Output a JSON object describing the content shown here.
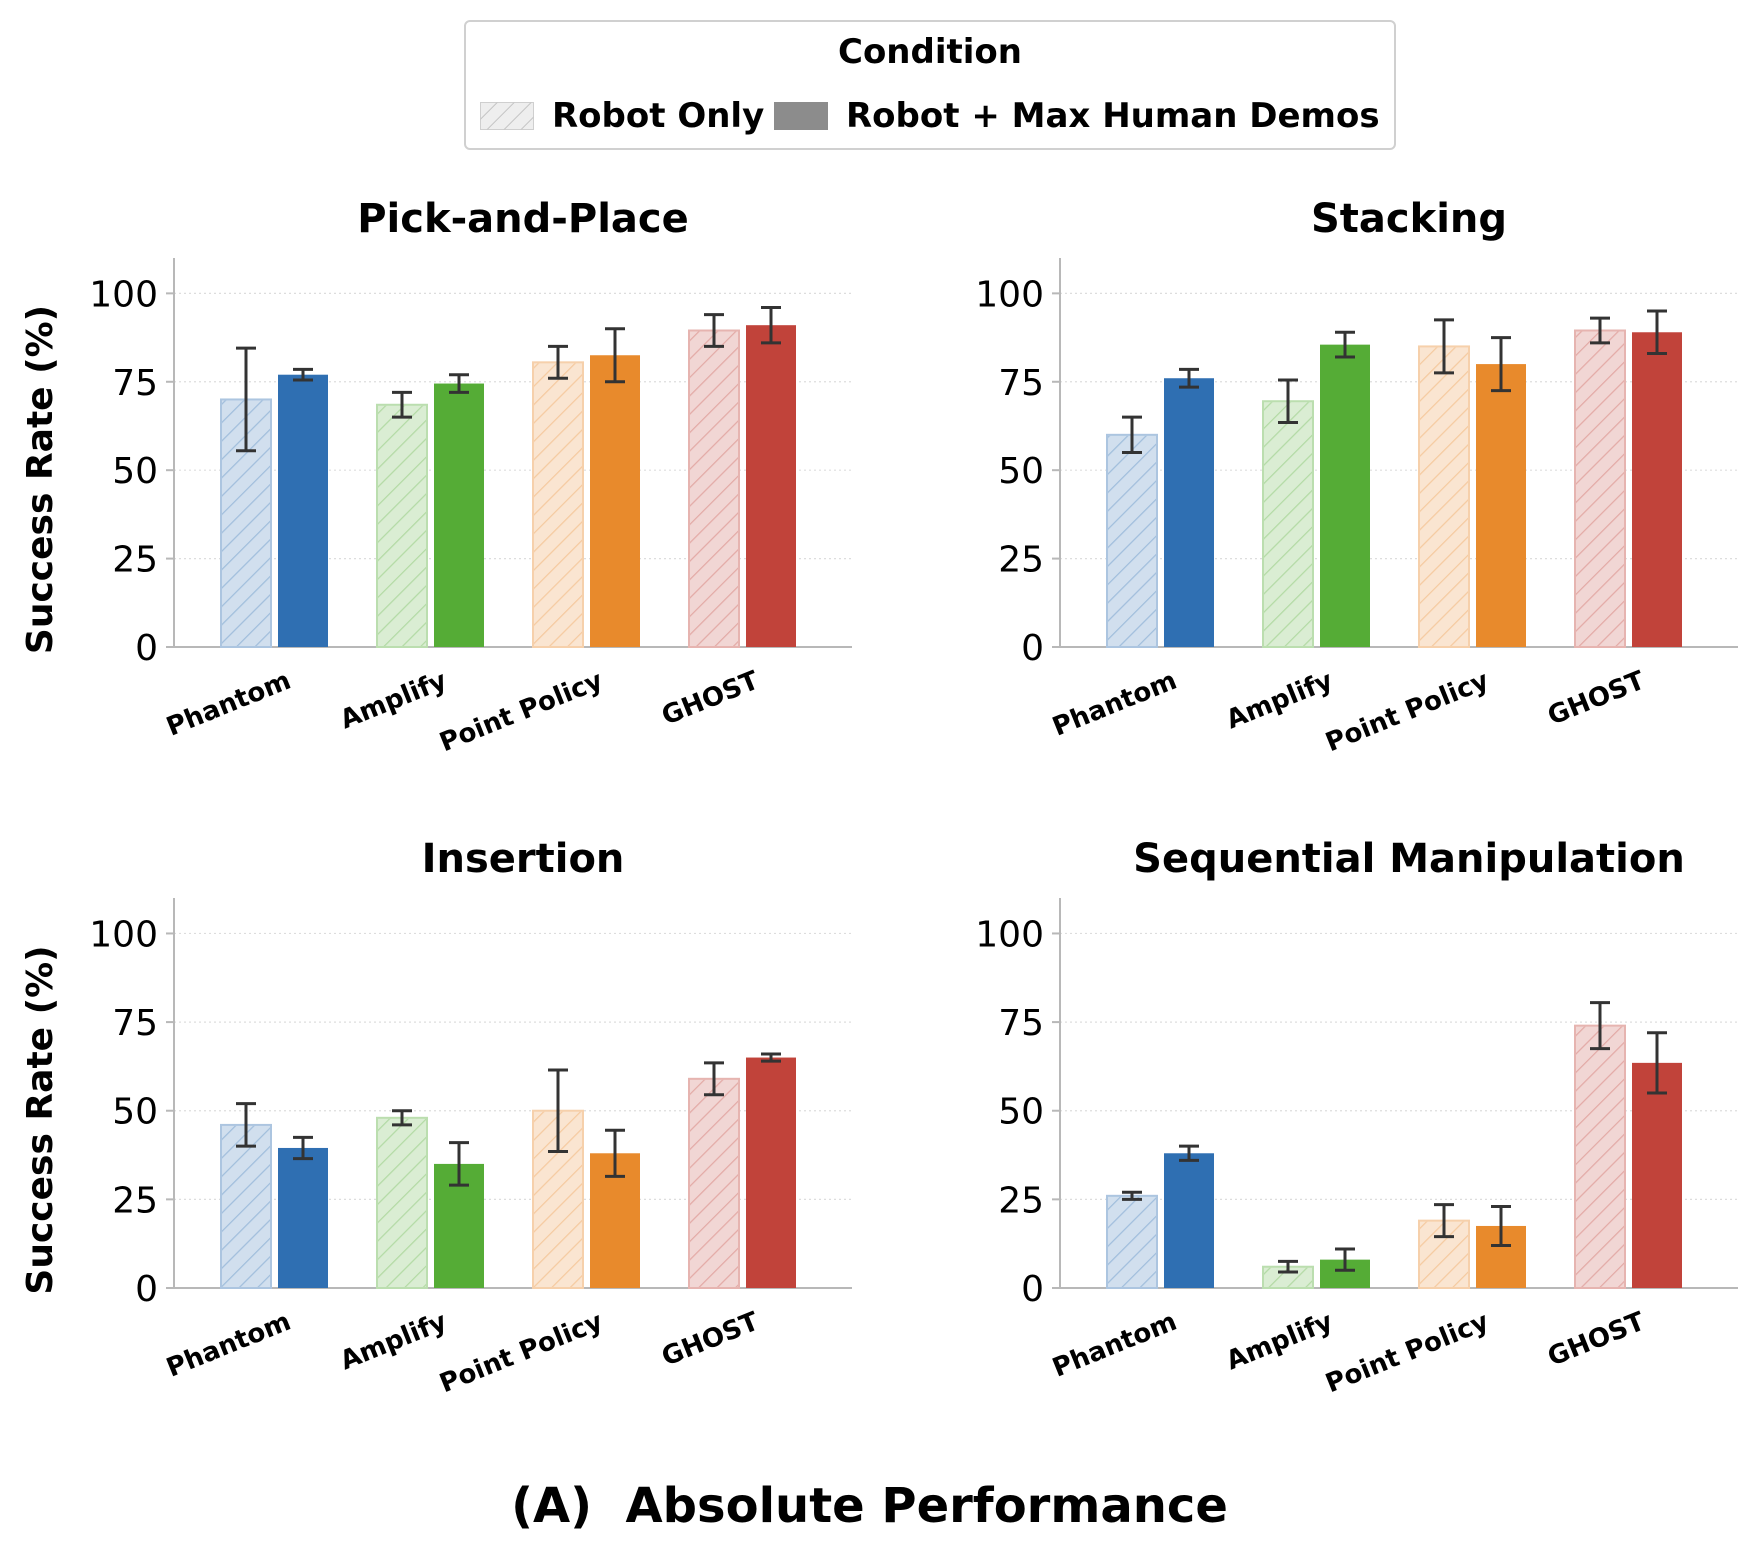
{
  "legend": {
    "title": "Condition",
    "entries": [
      {
        "label": "Robot Only",
        "style": "hatched"
      },
      {
        "label": "Robot + Max Human Demos",
        "style": "solid"
      }
    ]
  },
  "caption": "(A)  Absolute Performance",
  "colors": {
    "Phantom": "#2f6fb2",
    "Amplify": "#55ac36",
    "Point Policy": "#e88a2c",
    "GHOST": "#c1433a",
    "axis": "#b8b8b8",
    "grid": "#dddddd",
    "errorbar": "#333333"
  },
  "chart_data": [
    {
      "type": "bar",
      "title": "Pick-and-Place",
      "ylabel": "Success Rate (%)",
      "ylim": [
        0,
        110
      ],
      "yticks": [
        "0",
        "25",
        "50",
        "75",
        "100"
      ],
      "grid": "horizontal dotted",
      "categories": [
        "Phantom",
        "Amplify",
        "Point Policy",
        "GHOST"
      ],
      "series": [
        {
          "name": "Robot Only",
          "values": [
            70,
            68.5,
            80.5,
            89.5
          ],
          "errors": [
            14.5,
            3.5,
            4.5,
            4.5
          ]
        },
        {
          "name": "Robot + Max Human Demos",
          "values": [
            77,
            74.5,
            82.5,
            91
          ],
          "errors": [
            1.5,
            2.5,
            7.5,
            5
          ]
        }
      ]
    },
    {
      "type": "bar",
      "title": "Stacking",
      "ylabel": "",
      "ylim": [
        0,
        110
      ],
      "yticks": [
        "0",
        "25",
        "50",
        "75",
        "100"
      ],
      "grid": "horizontal dotted",
      "categories": [
        "Phantom",
        "Amplify",
        "Point Policy",
        "GHOST"
      ],
      "series": [
        {
          "name": "Robot Only",
          "values": [
            60,
            69.5,
            85,
            89.5
          ],
          "errors": [
            5,
            6,
            7.5,
            3.5
          ]
        },
        {
          "name": "Robot + Max Human Demos",
          "values": [
            76,
            85.5,
            80,
            89
          ],
          "errors": [
            2.5,
            3.5,
            7.5,
            6
          ]
        }
      ]
    },
    {
      "type": "bar",
      "title": "Insertion",
      "ylabel": "Success Rate (%)",
      "ylim": [
        0,
        110
      ],
      "yticks": [
        "0",
        "25",
        "50",
        "75",
        "100"
      ],
      "grid": "horizontal dotted",
      "categories": [
        "Phantom",
        "Amplify",
        "Point Policy",
        "GHOST"
      ],
      "series": [
        {
          "name": "Robot Only",
          "values": [
            46,
            48,
            50,
            59
          ],
          "errors": [
            6,
            2,
            11.5,
            4.5
          ]
        },
        {
          "name": "Robot + Max Human Demos",
          "values": [
            39.5,
            35,
            38,
            65
          ],
          "errors": [
            3,
            6,
            6.5,
            1
          ]
        }
      ]
    },
    {
      "type": "bar",
      "title": "Sequential Manipulation",
      "ylabel": "",
      "ylim": [
        0,
        110
      ],
      "yticks": [
        "0",
        "25",
        "50",
        "75",
        "100"
      ],
      "grid": "horizontal dotted",
      "categories": [
        "Phantom",
        "Amplify",
        "Point Policy",
        "GHOST"
      ],
      "series": [
        {
          "name": "Robot Only",
          "values": [
            26,
            6,
            19,
            74
          ],
          "errors": [
            1,
            1.5,
            4.5,
            6.5
          ]
        },
        {
          "name": "Robot + Max Human Demos",
          "values": [
            38,
            8,
            17.5,
            63.5
          ],
          "errors": [
            2,
            3,
            5.5,
            8.5
          ]
        }
      ]
    }
  ]
}
